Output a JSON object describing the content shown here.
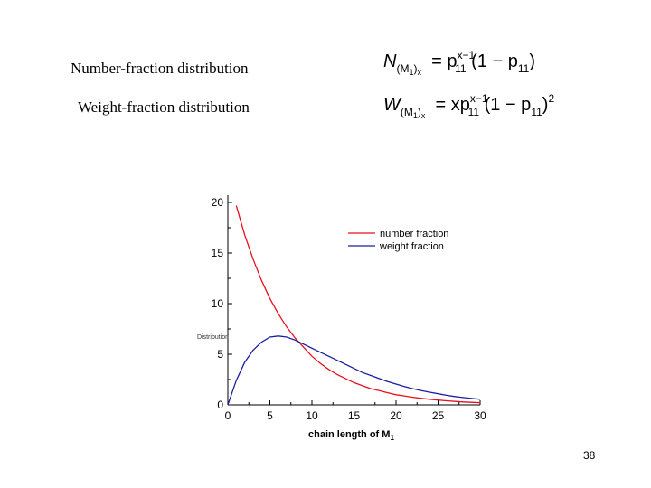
{
  "slide": {
    "number_label": "Number-fraction distribution",
    "weight_label": "Weight-fraction distribution",
    "page_number": "38"
  },
  "formulas": {
    "number": {
      "lhs": "N",
      "lhs_sub": "(M",
      "lhs_subsub": "1",
      "lhs_sub_close": ")",
      "lhs_subx": "x",
      "rhs": "= p",
      "rhs_sub": "11",
      "rhs_sup": "x−1",
      "rhs_tail": "(1 − p",
      "rhs_tail_sub": "11",
      "rhs_close": ")"
    },
    "weight": {
      "lhs": "W",
      "lhs_sub": "(M",
      "lhs_subsub": "1",
      "lhs_sub_close": ")",
      "lhs_subx": "x",
      "rhs": "= xp",
      "rhs_sub": "11",
      "rhs_sup": "x−1",
      "rhs_tail": "(1 − p",
      "rhs_tail_sub": "11",
      "rhs_close": ")",
      "rhs_close_sup": "2"
    }
  },
  "chart_data": {
    "type": "line",
    "xlabel": "chain length of M",
    "xlabel_sub": "1",
    "ylabel": "Distribution",
    "xlim": [
      0,
      30
    ],
    "ylim": [
      0,
      20
    ],
    "xticks": [
      0,
      5,
      10,
      15,
      20,
      25,
      30
    ],
    "yticks": [
      0,
      5,
      10,
      15,
      20
    ],
    "grid": false,
    "legend_placement": "top-right",
    "series": [
      {
        "name": "number fraction",
        "color": "#e8101c",
        "x": [
          1,
          2,
          3,
          4,
          5,
          6,
          7,
          8,
          9,
          10,
          11,
          12,
          13,
          14,
          15,
          16,
          17,
          18,
          19,
          20,
          21,
          22,
          23,
          24,
          25,
          26,
          27,
          28,
          29,
          30
        ],
        "y": [
          19.7,
          16.8,
          14.4,
          12.3,
          10.5,
          9.0,
          7.7,
          6.6,
          5.7,
          4.8,
          4.1,
          3.5,
          3.0,
          2.6,
          2.2,
          1.9,
          1.6,
          1.4,
          1.2,
          1.0,
          0.88,
          0.75,
          0.64,
          0.55,
          0.47,
          0.4,
          0.34,
          0.29,
          0.25,
          0.21
        ]
      },
      {
        "name": "weight fraction",
        "color": "#1a1ea0",
        "x": [
          0,
          1,
          2,
          3,
          4,
          5,
          6,
          7,
          8,
          9,
          10,
          11,
          12,
          13,
          14,
          15,
          16,
          17,
          18,
          19,
          20,
          21,
          22,
          23,
          24,
          25,
          26,
          27,
          28,
          29,
          30
        ],
        "y": [
          0,
          2.4,
          4.2,
          5.4,
          6.2,
          6.7,
          6.8,
          6.7,
          6.4,
          6.0,
          5.6,
          5.2,
          4.8,
          4.4,
          4.0,
          3.6,
          3.2,
          2.9,
          2.6,
          2.3,
          2.05,
          1.8,
          1.6,
          1.4,
          1.25,
          1.1,
          0.95,
          0.82,
          0.72,
          0.63,
          0.55
        ]
      }
    ]
  }
}
